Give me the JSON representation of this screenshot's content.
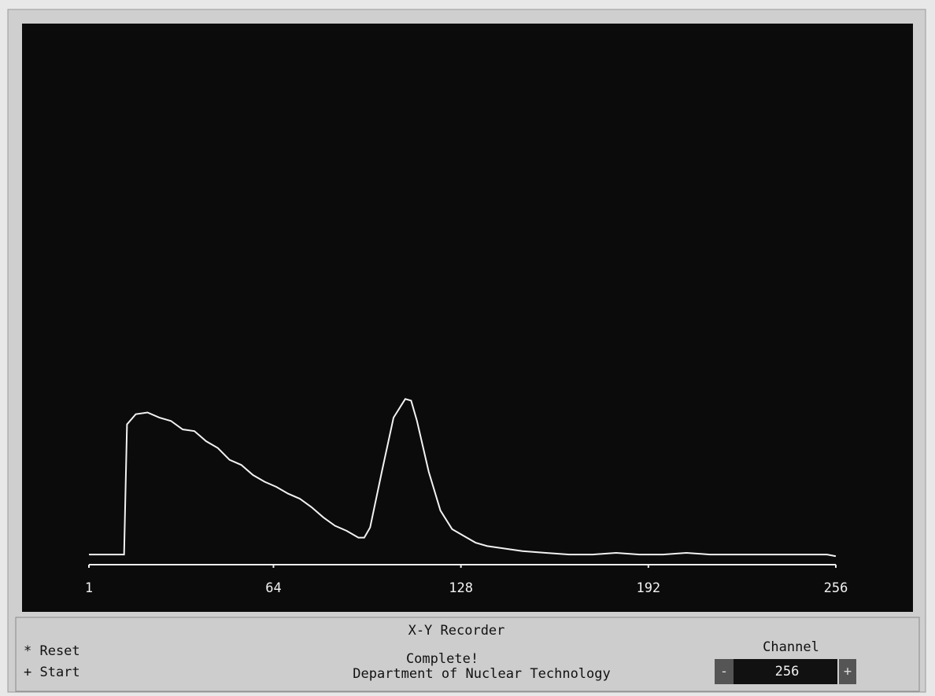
{
  "window": {
    "title": "X-Y Recorder",
    "menu": [
      "* Reset",
      "+ Start"
    ],
    "status": "Complete!",
    "department": "Department of Nuclear Technology",
    "channel_label": "Channel",
    "channel_value": "256",
    "decrement": "-",
    "increment": "+"
  },
  "chart_data": {
    "type": "line",
    "xlim": [
      1,
      256
    ],
    "xticks": [
      1,
      64,
      128,
      192,
      256
    ],
    "ylim": [
      0,
      320
    ],
    "color": "#f2f2f2",
    "x": [
      1,
      5,
      9,
      13,
      14,
      17,
      21,
      25,
      29,
      33,
      37,
      41,
      45,
      49,
      53,
      57,
      61,
      65,
      69,
      73,
      77,
      81,
      85,
      89,
      93,
      95,
      97,
      101,
      105,
      109,
      111,
      113,
      117,
      121,
      125,
      129,
      133,
      137,
      141,
      145,
      149,
      157,
      165,
      173,
      181,
      189,
      197,
      205,
      213,
      221,
      229,
      237,
      245,
      253,
      256
    ],
    "values": [
      6,
      6,
      6,
      6,
      83,
      89,
      90,
      87,
      85,
      80,
      79,
      73,
      69,
      62,
      59,
      53,
      49,
      46,
      42,
      39,
      34,
      28,
      23,
      20,
      16,
      16,
      22,
      55,
      87,
      98,
      97,
      85,
      55,
      32,
      21,
      17,
      13,
      11,
      10,
      9,
      8,
      7,
      6,
      6,
      7,
      6,
      6,
      7,
      6,
      6,
      6,
      6,
      6,
      6,
      5
    ]
  }
}
